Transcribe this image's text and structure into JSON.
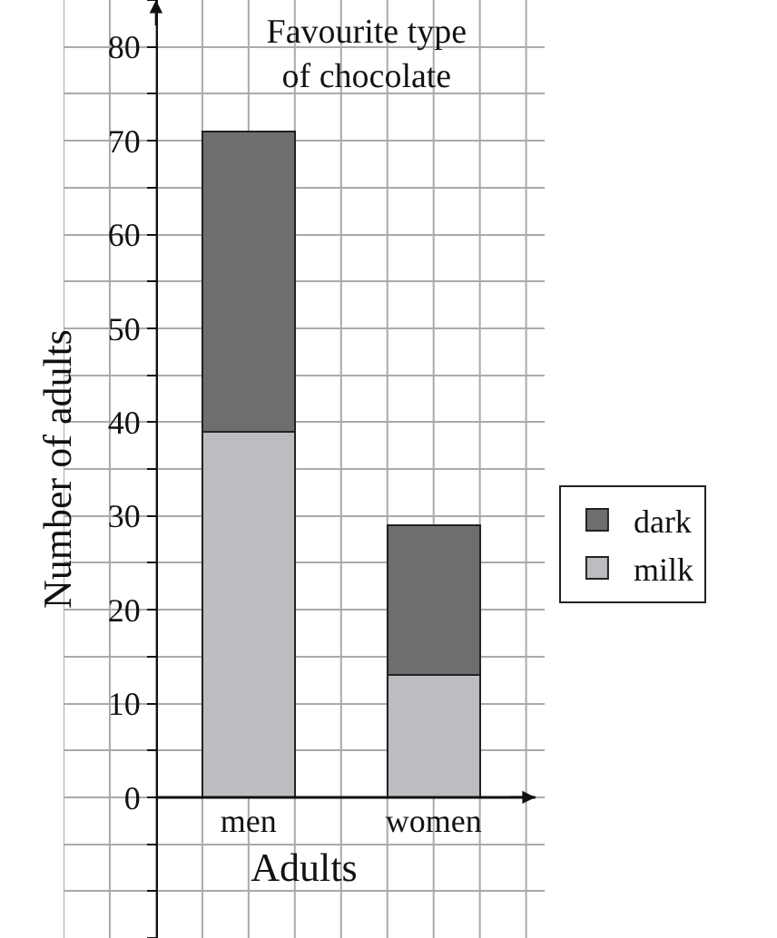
{
  "chart_data": {
    "type": "bar",
    "stacked": true,
    "title": "Favourite type\nof chocolate",
    "xlabel": "Adults",
    "ylabel": "Number of adults",
    "categories": [
      "men",
      "women"
    ],
    "series": [
      {
        "name": "milk",
        "color": "#bcbdc0",
        "values": [
          39,
          13
        ]
      },
      {
        "name": "dark",
        "color": "#6d6e70",
        "values": [
          32,
          16
        ]
      }
    ],
    "ylim": [
      -15,
      85
    ],
    "yticks": [
      {
        "value": -15,
        "label": null
      },
      {
        "value": -10,
        "label": null
      },
      {
        "value": -5,
        "label": null
      },
      0,
      {
        "value": 5,
        "label": null
      },
      10,
      {
        "value": 15,
        "label": null
      },
      20,
      {
        "value": 25,
        "label": null
      },
      30,
      {
        "value": 35,
        "label": null
      },
      40,
      {
        "value": 45,
        "label": null
      },
      50,
      {
        "value": 55,
        "label": null
      },
      60,
      {
        "value": 65,
        "label": null
      },
      70,
      {
        "value": 75,
        "label": null
      },
      80,
      {
        "value": 85,
        "label": null
      }
    ],
    "grid": true,
    "legend": "right"
  }
}
